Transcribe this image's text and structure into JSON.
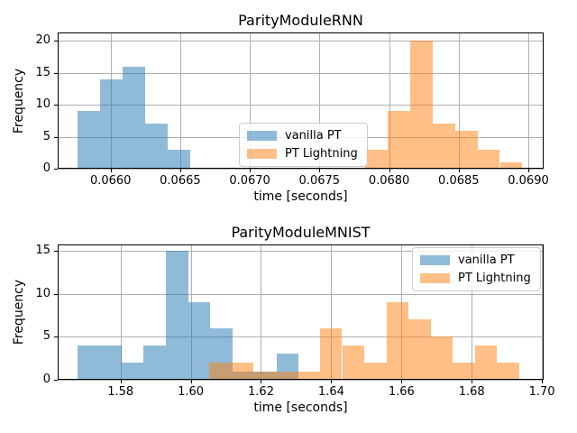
{
  "figure": {
    "background": "#ffffff",
    "grid_color": "#b0b0b0",
    "spine_color": "#000000",
    "legend_border_color": "#cccccc"
  },
  "legend": {
    "items": [
      {
        "label": "vanilla PT",
        "color": "rgba(31,119,180,0.5)"
      },
      {
        "label": "PT Lightning",
        "color": "rgba(255,127,14,0.5)"
      }
    ]
  },
  "chart_data": [
    {
      "type": "bar",
      "subtype": "histogram",
      "title": "ParityModuleRNN",
      "xlabel": "time [seconds]",
      "ylabel": "Frequency",
      "xlim": [
        0.06562,
        0.06911
      ],
      "ylim": [
        0,
        21.3
      ],
      "xticks": [
        0.066,
        0.0665,
        0.067,
        0.0675,
        0.068,
        0.0685,
        0.069
      ],
      "xtick_labels": [
        "0.0660",
        "0.0665",
        "0.0670",
        "0.0675",
        "0.0680",
        "0.0685",
        "0.0690"
      ],
      "yticks": [
        0,
        5,
        10,
        15,
        20
      ],
      "ytick_labels": [
        "0",
        "5",
        "10",
        "15",
        "20"
      ],
      "grid": true,
      "legend_loc": "center",
      "series": [
        {
          "name": "vanilla PT",
          "color": "rgba(31,119,180,0.5)",
          "bin_start": 0.06576,
          "bin_width": 0.000162,
          "counts": [
            9,
            14,
            16,
            7,
            3
          ]
        },
        {
          "name": "PT Lightning",
          "color": "rgba(255,127,14,0.5)",
          "bin_start": 0.06783,
          "bin_width": 0.000161,
          "counts": [
            3,
            9,
            20,
            7,
            6,
            3,
            1
          ]
        }
      ]
    },
    {
      "type": "bar",
      "subtype": "histogram",
      "title": "ParityModuleMNIST",
      "xlabel": "time [seconds]",
      "ylabel": "Frequency",
      "xlim": [
        1.5621,
        1.7005
      ],
      "ylim": [
        0,
        15.75
      ],
      "xticks": [
        1.58,
        1.6,
        1.62,
        1.64,
        1.66,
        1.68,
        1.7
      ],
      "xtick_labels": [
        "1.58",
        "1.60",
        "1.62",
        "1.64",
        "1.66",
        "1.68",
        "1.70"
      ],
      "yticks": [
        0,
        5,
        10,
        15
      ],
      "ytick_labels": [
        "0",
        "5",
        "10",
        "15"
      ],
      "grid": true,
      "legend_loc": "upper right",
      "series": [
        {
          "name": "vanilla PT",
          "color": "rgba(31,119,180,0.5)",
          "bin_start": 1.5677,
          "bin_width": 0.0063,
          "counts": [
            4,
            4,
            2,
            4,
            15,
            9,
            6,
            1,
            1,
            3
          ]
        },
        {
          "name": "PT Lightning",
          "color": "rgba(255,127,14,0.5)",
          "bin_start": 1.6053,
          "bin_width": 0.0063,
          "counts": [
            2,
            2,
            1,
            1,
            1,
            6,
            4,
            2,
            9,
            7,
            5,
            2,
            4,
            2
          ]
        }
      ]
    }
  ]
}
